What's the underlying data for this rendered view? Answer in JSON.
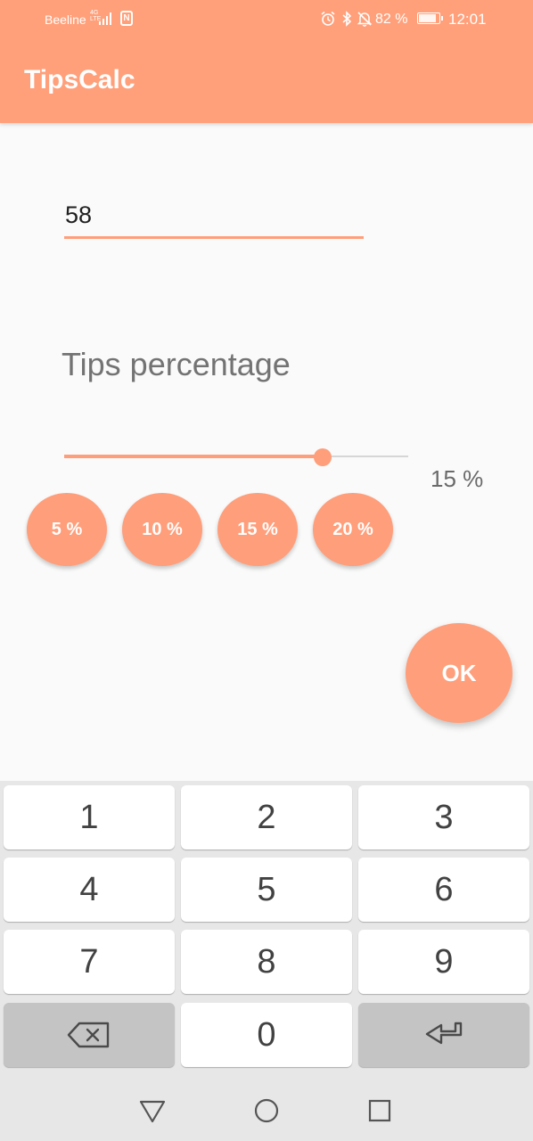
{
  "status_bar": {
    "carrier": "Beeline",
    "network_type_top": "4G",
    "network_type_bottom": "LTE",
    "nfc_label": "N",
    "battery_percent": "82 %",
    "time": "12:01",
    "icons": [
      "alarm-icon",
      "bluetooth-icon",
      "mute-icon",
      "battery-icon"
    ]
  },
  "app_bar": {
    "title": "TipsCalc"
  },
  "amount_input": {
    "value": "58"
  },
  "tips_label": "Tips percentage",
  "slider": {
    "value": 15,
    "min": 0,
    "max": 20,
    "display": "15 %"
  },
  "presets": [
    "5 %",
    "10 %",
    "15 %",
    "20 %"
  ],
  "ok_label": "OK",
  "keyboard": {
    "keys": [
      "1",
      "2",
      "3",
      "4",
      "5",
      "6",
      "7",
      "8",
      "9",
      "0"
    ],
    "backspace_icon": "backspace-icon",
    "enter_icon": "enter-icon"
  },
  "navbar": {
    "icons": [
      "back-icon",
      "home-icon",
      "recents-icon"
    ]
  },
  "colors": {
    "accent": "#ffa07a",
    "background": "#fafafa",
    "keyboard_bg": "#e7e7e7"
  }
}
